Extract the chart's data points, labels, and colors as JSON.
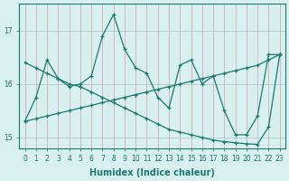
{
  "xlabel": "Humidex (Indice chaleur)",
  "x": [
    0,
    1,
    2,
    3,
    4,
    5,
    6,
    7,
    8,
    9,
    10,
    11,
    12,
    13,
    14,
    15,
    16,
    17,
    18,
    19,
    20,
    21,
    22,
    23
  ],
  "line_zigzag": [
    15.3,
    15.75,
    16.45,
    16.1,
    15.95,
    16.0,
    16.15,
    16.9,
    17.3,
    16.65,
    16.3,
    16.2,
    15.75,
    15.55,
    16.35,
    16.45,
    16.0,
    16.15,
    15.5,
    15.05,
    15.05,
    15.4,
    16.55,
    16.55
  ],
  "line_decrease": [
    16.4,
    16.3,
    16.2,
    16.1,
    16.0,
    15.95,
    15.85,
    15.75,
    15.65,
    15.55,
    15.45,
    15.35,
    15.25,
    15.15,
    15.1,
    15.05,
    15.0,
    14.95,
    14.92,
    14.9,
    14.88,
    14.87,
    15.2,
    16.55
  ],
  "line_increase": [
    15.3,
    15.35,
    15.4,
    15.45,
    15.5,
    15.55,
    15.6,
    15.65,
    15.7,
    15.75,
    15.8,
    15.85,
    15.9,
    15.95,
    16.0,
    16.05,
    16.1,
    16.15,
    16.2,
    16.25,
    16.3,
    16.35,
    16.45,
    16.55
  ],
  "line_color": "#1a7a6e",
  "bg_color": "#d8f0ef",
  "xlim": [
    -0.5,
    23.5
  ],
  "ylim": [
    14.8,
    17.5
  ],
  "yticks": [
    15,
    16,
    17
  ],
  "xticks": [
    0,
    1,
    2,
    3,
    4,
    5,
    6,
    7,
    8,
    9,
    10,
    11,
    12,
    13,
    14,
    15,
    16,
    17,
    18,
    19,
    20,
    21,
    22,
    23
  ]
}
